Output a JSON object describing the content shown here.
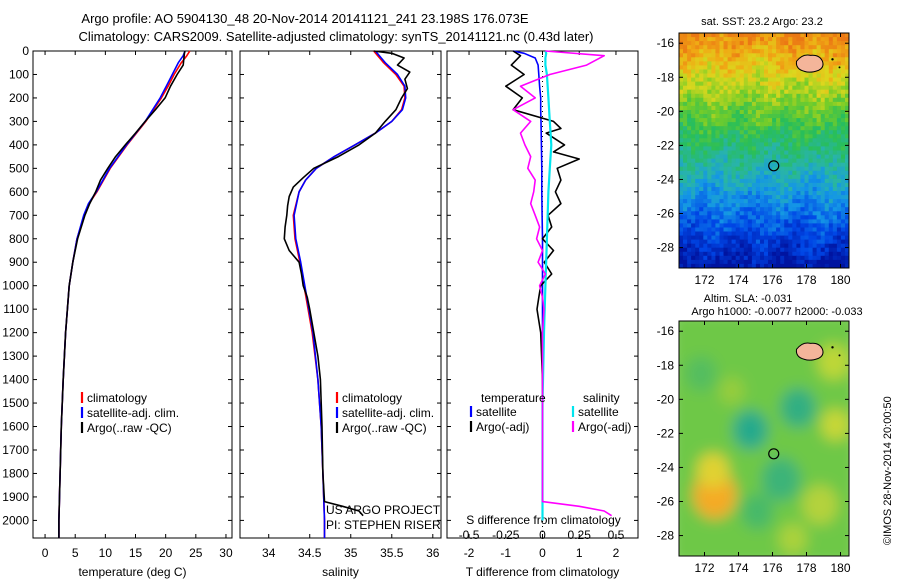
{
  "header": {
    "line1": "Argo profile: AO 5904130_48 20-Nov-2014 20141121_241 23.198S 176.073E",
    "line2": "Climatology: CARS2009. Satellite-adjusted climatology: synTS_20141121.nc (0.43d later)"
  },
  "colors": {
    "climatology": "#ff0000",
    "satellite": "#0000ff",
    "argo": "#000000",
    "sat_salinity": "#00e5ee",
    "argo_salinity": "#ff00ff",
    "land": "#f4b59a"
  },
  "chart_data": [
    {
      "type": "line",
      "id": "temperature",
      "xlabel": "temperature (deg C)",
      "ylabel": "",
      "xlim": [
        -2,
        31
      ],
      "ylim": [
        0,
        2075
      ],
      "y_inverted": true,
      "xticks": [
        0,
        5,
        10,
        15,
        20,
        25,
        30
      ],
      "yticks": [
        0,
        100,
        200,
        300,
        400,
        500,
        600,
        700,
        800,
        900,
        1000,
        1100,
        1200,
        1300,
        1400,
        1500,
        1600,
        1700,
        1800,
        1900,
        2000
      ],
      "legend": [
        "climatology",
        "satellite-adj. clim.",
        "Argo(..raw -QC)"
      ],
      "series": [
        {
          "name": "climatology",
          "depth": [
            0,
            20,
            50,
            100,
            150,
            200,
            300,
            400,
            500,
            600,
            650,
            700,
            800,
            900,
            1000,
            1200,
            1400,
            1600,
            1800,
            2000,
            2075
          ],
          "values": [
            24.0,
            23.5,
            22.6,
            21.4,
            20.4,
            19.3,
            16.7,
            13.6,
            10.8,
            8.6,
            7.3,
            6.5,
            5.3,
            4.6,
            4.0,
            3.4,
            3.0,
            2.7,
            2.5,
            2.3,
            2.3
          ]
        },
        {
          "name": "satellite-adj. clim.",
          "depth": [
            0,
            20,
            50,
            100,
            150,
            200,
            300,
            400,
            500,
            600,
            650,
            700,
            800,
            900,
            1000,
            1200,
            1400,
            1600,
            1800,
            2000,
            2075
          ],
          "values": [
            23.2,
            22.9,
            22.1,
            21.1,
            20.1,
            19.1,
            16.6,
            13.5,
            10.7,
            8.5,
            7.2,
            6.4,
            5.3,
            4.6,
            4.0,
            3.4,
            3.0,
            2.7,
            2.5,
            2.3,
            2.3
          ]
        },
        {
          "name": "Argo(..raw -QC)",
          "depth": [
            0,
            10,
            60,
            100,
            150,
            200,
            250,
            300,
            350,
            400,
            450,
            500,
            550,
            600,
            650,
            700,
            800,
            900,
            1000,
            1200,
            1400,
            1600,
            1800,
            2000,
            2075
          ],
          "values": [
            23.2,
            23.1,
            22.9,
            21.9,
            20.8,
            19.9,
            18.3,
            16.6,
            15.0,
            13.3,
            11.7,
            10.4,
            9.2,
            8.4,
            7.4,
            6.6,
            5.4,
            4.6,
            4.0,
            3.4,
            3.0,
            2.7,
            2.5,
            2.3,
            2.3
          ]
        }
      ]
    },
    {
      "type": "line",
      "id": "salinity",
      "xlabel": "salinity",
      "xlim": [
        33.65,
        36.1
      ],
      "ylim": [
        0,
        2075
      ],
      "y_inverted": true,
      "xticks": [
        34,
        34.5,
        35,
        35.5,
        36
      ],
      "legend": [
        "climatology",
        "satellite-adj. clim.",
        "Argo(..raw -QC)"
      ],
      "annotation": [
        "US ARGO PROJECT",
        "PI: STEPHEN RISER"
      ],
      "series": [
        {
          "name": "climatology",
          "depth": [
            0,
            50,
            100,
            150,
            200,
            250,
            300,
            350,
            400,
            450,
            500,
            550,
            600,
            700,
            800,
            900,
            1000,
            1200,
            1400,
            1600,
            1800,
            2000,
            2075
          ],
          "values": [
            35.28,
            35.4,
            35.55,
            35.65,
            35.66,
            35.62,
            35.5,
            35.3,
            35.05,
            34.8,
            34.58,
            34.45,
            34.37,
            34.3,
            34.32,
            34.38,
            34.43,
            34.53,
            34.6,
            34.64,
            34.66,
            34.68,
            34.68
          ]
        },
        {
          "name": "satellite-adj. clim.",
          "depth": [
            0,
            50,
            100,
            150,
            200,
            250,
            300,
            350,
            400,
            450,
            500,
            550,
            600,
            700,
            800,
            900,
            1000,
            1200,
            1400,
            1600,
            1800,
            2000,
            2075
          ],
          "values": [
            35.3,
            35.42,
            35.57,
            35.66,
            35.67,
            35.63,
            35.5,
            35.3,
            35.05,
            34.8,
            34.58,
            34.45,
            34.37,
            34.31,
            34.33,
            34.39,
            34.44,
            34.54,
            34.6,
            34.64,
            34.66,
            34.68,
            34.68
          ]
        },
        {
          "name": "Argo(..raw -QC)",
          "depth": [
            0,
            10,
            30,
            60,
            90,
            120,
            160,
            200,
            250,
            300,
            350,
            400,
            450,
            500,
            540,
            580,
            620,
            660,
            700,
            750,
            800,
            850,
            900,
            950,
            1000,
            1050,
            1100,
            1200,
            1300,
            1400,
            1600,
            1800,
            1920,
            1940,
            1960,
            1980
          ],
          "values": [
            35.28,
            35.5,
            35.65,
            35.57,
            35.72,
            35.66,
            35.69,
            35.62,
            35.55,
            35.42,
            35.3,
            35.1,
            34.85,
            34.55,
            34.42,
            34.3,
            34.25,
            34.23,
            34.22,
            34.2,
            34.19,
            34.25,
            34.37,
            34.4,
            34.42,
            34.47,
            34.5,
            34.55,
            34.6,
            34.63,
            34.65,
            34.66,
            34.68,
            34.9,
            35.1,
            35.15
          ]
        }
      ]
    },
    {
      "type": "line",
      "id": "difference",
      "xlabel": "T difference from climatology",
      "xlabel_top": "S difference from climatology",
      "xlim": [
        -2.6,
        2.6
      ],
      "ylim": [
        0,
        2075
      ],
      "y_inverted": true,
      "xticks_T": [
        -2,
        -1,
        0,
        1,
        2
      ],
      "xticks_S": [
        "-0.5",
        "-0.25",
        "0",
        "0.25",
        "0.5"
      ],
      "legend_temperature": {
        "title": "temperature",
        "items": [
          "satellite",
          "Argo(-adj)"
        ]
      },
      "legend_salinity": {
        "title": "salinity",
        "items": [
          "satellite",
          "Argo(-adj)"
        ]
      },
      "series": [
        {
          "name": "temperature satellite",
          "depth": [
            0,
            10,
            30,
            60,
            100,
            150,
            200,
            250,
            300,
            400,
            500,
            600,
            700,
            800,
            1000,
            1200,
            1500,
            2000
          ],
          "values": [
            -0.8,
            -0.5,
            -0.2,
            -0.12,
            -0.1,
            -0.08,
            -0.05,
            -0.05,
            -0.04,
            -0.03,
            -0.02,
            -0.02,
            -0.01,
            0,
            0,
            0,
            0,
            0
          ]
        },
        {
          "name": "temperature Argo(-adj)",
          "depth": [
            0,
            20,
            60,
            100,
            150,
            200,
            250,
            300,
            330,
            350,
            400,
            430,
            460,
            500,
            550,
            600,
            650,
            700,
            750,
            800,
            850,
            900,
            950,
            1000,
            1050,
            1100,
            1200,
            1400,
            1600,
            1800,
            2000
          ],
          "values": [
            -0.8,
            -0.6,
            -0.85,
            -0.5,
            -1.0,
            -0.55,
            -0.8,
            0.3,
            0.5,
            0.1,
            0.6,
            0.3,
            1.0,
            0.4,
            0.5,
            0.35,
            0.5,
            0.15,
            0.25,
            0.0,
            0.3,
            0.05,
            0.25,
            -0.05,
            -0.1,
            -0.15,
            -0.05,
            0,
            0,
            0,
            0
          ]
        },
        {
          "name": "salinity satellite",
          "depth": [
            0,
            10,
            30,
            60,
            100,
            200,
            300,
            400,
            500,
            600,
            800,
            1000,
            1200,
            1500,
            2000
          ],
          "values": [
            0.02,
            0.025,
            0.02,
            0.02,
            0.03,
            0.04,
            0.05,
            0.06,
            0.05,
            0.04,
            0.03,
            0.02,
            0.01,
            0.0,
            0.0
          ]
        },
        {
          "name": "salinity Argo(-adj)",
          "depth": [
            0,
            20,
            60,
            100,
            150,
            200,
            250,
            300,
            350,
            400,
            450,
            500,
            550,
            600,
            650,
            700,
            750,
            800,
            850,
            900,
            950,
            1000,
            1050,
            1100,
            1200,
            1400,
            1600,
            1800,
            1920,
            1940,
            1960,
            1980
          ],
          "values": [
            0.02,
            0.42,
            0.3,
            0.05,
            -0.15,
            -0.05,
            -0.2,
            -0.08,
            -0.15,
            -0.12,
            -0.08,
            -0.1,
            -0.05,
            -0.06,
            -0.08,
            -0.05,
            -0.02,
            -0.04,
            0.0,
            -0.03,
            0.02,
            -0.02,
            0.0,
            0.01,
            0.0,
            0.0,
            0.0,
            0.0,
            0.0,
            0.25,
            0.42,
            0.47
          ]
        }
      ]
    },
    {
      "type": "heatmap",
      "id": "sst_map",
      "title": "sat. SST: 23.2  Argo: 23.2",
      "xlim": [
        170.5,
        180.5
      ],
      "ylim": [
        -29.2,
        -15.4
      ],
      "xticks": [
        172,
        174,
        176,
        178,
        180
      ],
      "yticks": [
        -16,
        -18,
        -20,
        -22,
        -24,
        -26,
        -28
      ],
      "marker": {
        "lon": 176.073,
        "lat": -23.198
      },
      "land": {
        "lon": 178.0,
        "lat": -17.3
      }
    },
    {
      "type": "heatmap",
      "id": "sla_map",
      "title": "Altim. SLA: -0.031",
      "subtitle": "Argo h1000: -0.0077  h2000: -0.033",
      "xlim": [
        170.5,
        180.5
      ],
      "ylim": [
        -29.2,
        -15.4
      ],
      "xticks": [
        172,
        174,
        176,
        178,
        180
      ],
      "yticks": [
        -16,
        -18,
        -20,
        -22,
        -24,
        -26,
        -28
      ],
      "marker": {
        "lon": 176.073,
        "lat": -23.198
      },
      "land": {
        "lon": 178.0,
        "lat": -17.3
      }
    }
  ],
  "credit": "©IMOS 28-Nov-2014 20:00:50"
}
